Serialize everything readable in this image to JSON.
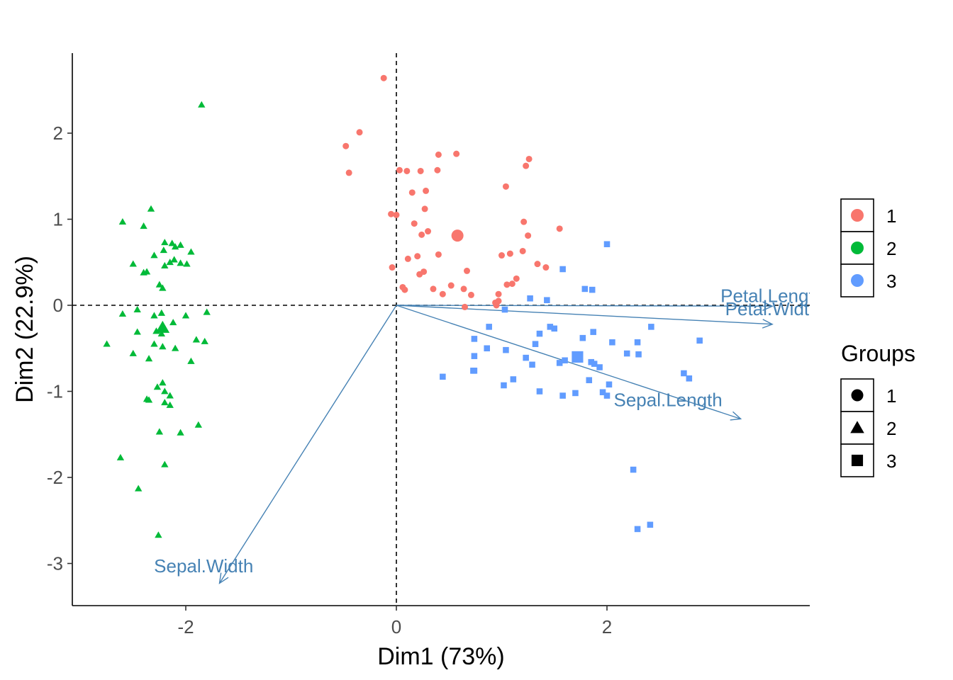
{
  "chart_data": {
    "type": "scatter",
    "title": "",
    "xlabel": "Dim1 (73%)",
    "ylabel": "Dim2 (22.9%)",
    "xlim": [
      -3.08,
      3.95
    ],
    "ylim": [
      -3.5,
      2.95
    ],
    "x_ticks": [
      -2,
      0,
      2
    ],
    "y_ticks": [
      -3,
      -2,
      -1,
      0,
      1,
      2
    ],
    "grid": false,
    "reference_lines": {
      "x": 0,
      "y": 0,
      "style": "dashed"
    },
    "colors": {
      "1": "#F8766D",
      "2": "#00BA38",
      "3": "#619CFF",
      "variables": "#4682B4"
    },
    "series": [
      {
        "name": "1",
        "shape": "circle",
        "color": "#F8766D",
        "centroid": [
          0.58,
          0.81
        ],
        "x": [
          -0.12,
          -0.35,
          -0.48,
          -0.45,
          0.03,
          0.1,
          0.23,
          0.4,
          0.57,
          0.39,
          0.15,
          0.28,
          -0.05,
          0.0,
          0.27,
          0.17,
          0.3,
          0.24,
          0.11,
          0.4,
          0.2,
          0.26,
          -0.04,
          0.22,
          0.06,
          0.08,
          0.35,
          0.44,
          0.52,
          0.64,
          0.67,
          0.71,
          0.94,
          1.0,
          1.04,
          1.08,
          1.14,
          1.2,
          1.23,
          1.26,
          1.1,
          1.25,
          1.21,
          1.55,
          1.34,
          1.42,
          0.95,
          0.97,
          1.05,
          0.97,
          0.65
        ],
        "y": [
          2.64,
          2.01,
          1.85,
          1.54,
          1.57,
          1.56,
          1.56,
          1.75,
          1.76,
          1.57,
          1.31,
          1.33,
          1.06,
          1.05,
          1.12,
          0.95,
          0.86,
          0.82,
          0.54,
          0.59,
          0.57,
          0.39,
          0.44,
          0.36,
          0.21,
          0.18,
          0.19,
          0.13,
          0.23,
          0.19,
          0.4,
          0.12,
          0.03,
          0.58,
          1.38,
          0.6,
          0.31,
          0.63,
          1.62,
          1.7,
          0.25,
          0.81,
          0.97,
          0.89,
          0.48,
          0.44,
          0.0,
          0.05,
          0.24,
          0.13,
          -0.02
        ]
      },
      {
        "name": "2",
        "shape": "triangle",
        "color": "#00BA38",
        "centroid": [
          -2.22,
          -0.26
        ],
        "x": [
          -1.85,
          -2.33,
          -2.6,
          -2.4,
          -2.13,
          -2.2,
          -2.1,
          -1.95,
          -2.21,
          -2.05,
          -2.5,
          -2.05,
          -2.3,
          -2.37,
          -2.4,
          -2.2,
          -2.15,
          -2.11,
          -1.99,
          -2.22,
          -2.25,
          -2.46,
          -2.6,
          -2.23,
          -2.3,
          -2.12,
          -2.0,
          -2.2,
          -2.28,
          -2.46,
          -2.23,
          -1.8,
          -1.9,
          -2.75,
          -2.5,
          -2.35,
          -2.3,
          -2.22,
          -2.1,
          -1.95,
          -1.82,
          -2.22,
          -2.27,
          -2.2,
          -2.35,
          -2.37,
          -2.15,
          -2.2,
          -2.05,
          -1.88,
          -2.25,
          -2.62,
          -2.45,
          -2.26,
          -2.2,
          -2.15
        ],
        "y": [
          2.33,
          1.12,
          0.97,
          0.92,
          0.72,
          0.73,
          0.68,
          0.62,
          0.64,
          0.7,
          0.48,
          0.49,
          0.58,
          0.39,
          0.38,
          0.46,
          0.5,
          0.53,
          0.48,
          0.2,
          0.24,
          -0.05,
          -0.1,
          -0.09,
          -0.12,
          -0.2,
          -0.12,
          -0.27,
          -0.3,
          -0.31,
          -0.33,
          -0.08,
          -0.4,
          -0.45,
          -0.56,
          -0.62,
          -0.45,
          -0.48,
          -0.5,
          -0.65,
          -0.42,
          -0.9,
          -0.95,
          -1.0,
          -1.1,
          -1.09,
          -1.05,
          -1.13,
          -1.48,
          -1.39,
          -1.47,
          -1.77,
          -2.13,
          -2.67,
          -1.85,
          -1.16
        ]
      },
      {
        "name": "3",
        "shape": "square",
        "color": "#619CFF",
        "centroid": [
          1.72,
          -0.6
        ],
        "x": [
          2.0,
          1.58,
          1.79,
          1.86,
          1.27,
          1.43,
          0.74,
          0.88,
          1.36,
          1.46,
          1.5,
          1.87,
          1.77,
          2.05,
          2.42,
          2.29,
          2.88,
          0.74,
          0.86,
          1.04,
          1.32,
          1.23,
          0.73,
          0.74,
          1.6,
          1.85,
          1.88,
          1.93,
          2.19,
          2.3,
          2.73,
          2.78,
          0.44,
          1.11,
          1.36,
          1.58,
          1.7,
          1.83,
          1.96,
          2.0,
          2.02,
          1.29,
          1.03,
          1.55,
          1.02,
          2.25,
          2.29,
          2.41
        ],
        "y": [
          0.71,
          0.42,
          0.19,
          0.18,
          0.08,
          0.06,
          -0.39,
          -0.25,
          -0.33,
          -0.25,
          -0.27,
          -0.31,
          -0.38,
          -0.43,
          -0.25,
          -0.43,
          -0.41,
          -0.59,
          -0.5,
          -0.52,
          -0.45,
          -0.61,
          -0.76,
          -0.76,
          -0.64,
          -0.66,
          -0.68,
          -0.72,
          -0.56,
          -0.57,
          -0.79,
          -0.85,
          -0.83,
          -0.86,
          -1.0,
          -1.05,
          -1.02,
          -0.87,
          -1.01,
          -1.05,
          -0.92,
          -0.69,
          -0.05,
          -0.67,
          -0.93,
          -1.91,
          -2.6,
          -2.55
        ]
      }
    ],
    "variables": [
      {
        "name": "Petal.Length",
        "x": 3.57,
        "y": -0.01,
        "label_x": 3.57,
        "label_y": 0.11
      },
      {
        "name": "Petal.Width",
        "x": 3.57,
        "y": -0.22,
        "label_x": 3.57,
        "label_y": -0.04
      },
      {
        "name": "Sepal.Length",
        "x": 3.27,
        "y": -1.32,
        "label_x": 2.58,
        "label_y": -1.1
      },
      {
        "name": "Sepal.Width",
        "x": -1.68,
        "y": -3.23,
        "label_x": -1.83,
        "label_y": -3.03
      }
    ],
    "legends": [
      {
        "title": "",
        "items": [
          "1",
          "2",
          "3"
        ],
        "kind": "color"
      },
      {
        "title": "Groups",
        "items": [
          "1",
          "2",
          "3"
        ],
        "kind": "shape"
      }
    ],
    "legend_position": "right"
  }
}
